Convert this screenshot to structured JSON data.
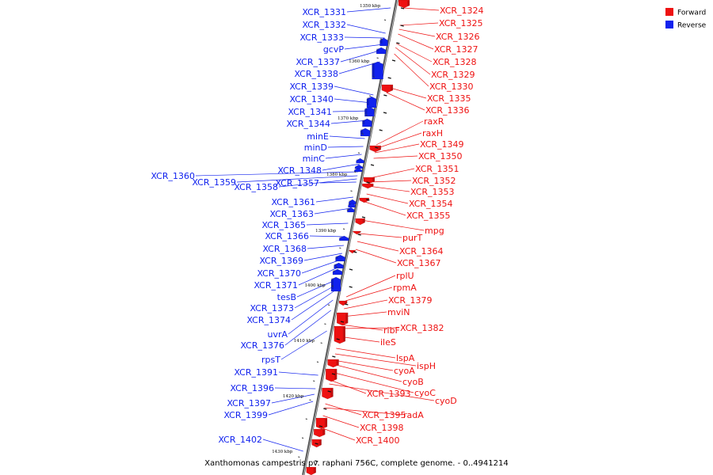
{
  "caption": "Xanthomonas campestris pv. raphani 756C, complete genome. - 0..4941214",
  "colors": {
    "forward": "#ee1111",
    "reverse": "#1122ee",
    "backbone": "#888888"
  },
  "legend": [
    {
      "label": "Forward",
      "strand": "forward"
    },
    {
      "label": "Reverse",
      "strand": "reverse"
    }
  ],
  "ticks": [
    "1350 kbp",
    "1360 kbp",
    "1370 kbp",
    "1380 kbp",
    "1390 kbp",
    "1400 kbp",
    "1410 kbp",
    "1420 kbp",
    "1430 kbp"
  ],
  "reverse_genes": [
    "XCR_1331",
    "XCR_1332",
    "XCR_1333",
    "gcvP",
    "XCR_1337",
    "XCR_1338",
    "XCR_1339",
    "XCR_1340",
    "XCR_1341",
    "XCR_1344",
    "minE",
    "minD",
    "minC",
    "XCR_1348",
    "XCR_1360",
    "XCR_1359",
    "XCR_1358",
    "XCR_1357",
    "XCR_1361",
    "XCR_1363",
    "XCR_1365",
    "XCR_1366",
    "XCR_1368",
    "XCR_1369",
    "XCR_1370",
    "XCR_1371",
    "tesB",
    "XCR_1373",
    "XCR_1374",
    "uvrA",
    "XCR_1376",
    "rpsT",
    "XCR_1391",
    "XCR_1396",
    "XCR_1397",
    "XCR_1399",
    "XCR_1402"
  ],
  "forward_genes": [
    "XCR_1324",
    "XCR_1325",
    "XCR_1326",
    "XCR_1327",
    "XCR_1328",
    "XCR_1329",
    "XCR_1330",
    "XCR_1335",
    "XCR_1336",
    "raxR",
    "raxH",
    "XCR_1349",
    "XCR_1350",
    "XCR_1351",
    "XCR_1352",
    "XCR_1353",
    "XCR_1354",
    "XCR_1355",
    "mpg",
    "purT",
    "XCR_1364",
    "XCR_1367",
    "rplU",
    "rpmA",
    "XCR_1379",
    "mviN",
    "ribF",
    "XCR_1382",
    "ileS",
    "lspA",
    "ispH",
    "cyoA",
    "cyoB",
    "cyoC",
    "XCR_1393",
    "cyoD",
    "XCR_1395",
    "radA",
    "XCR_1398",
    "XCR_1400"
  ]
}
